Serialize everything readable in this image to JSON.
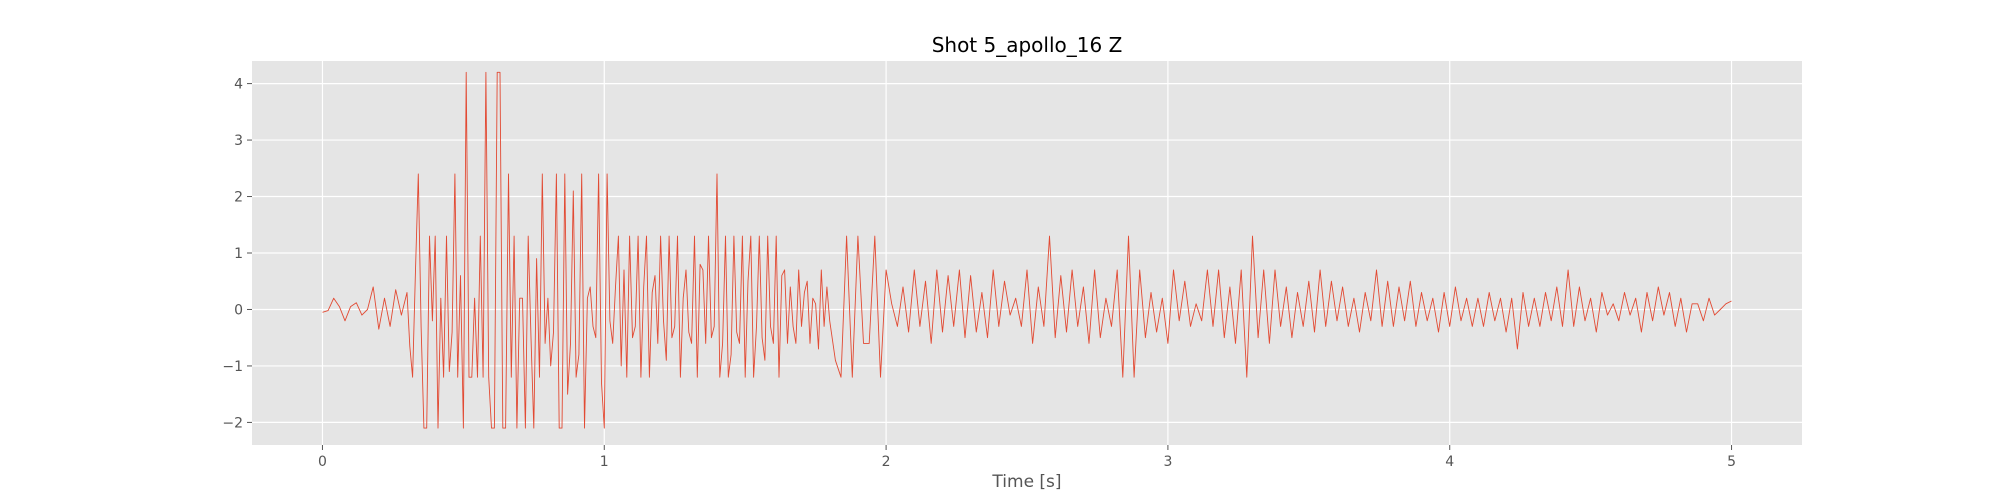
{
  "chart_data": {
    "type": "line",
    "title": "Shot 5_apollo_16 Z",
    "xlabel": "Time [s]",
    "ylabel": "",
    "xlim": [
      -0.25,
      5.25
    ],
    "ylim": [
      -2.4,
      4.4
    ],
    "xticks": [
      0,
      1,
      2,
      3,
      4,
      5
    ],
    "xtick_labels": [
      "0",
      "1",
      "2",
      "3",
      "4",
      "5"
    ],
    "yticks": [
      -2,
      -1,
      0,
      1,
      2,
      3,
      4
    ],
    "ytick_labels": [
      "−2",
      "−1",
      "0",
      "1",
      "2",
      "3",
      "4"
    ],
    "grid": true,
    "background": "#e5e5e5",
    "line_color": "#e24a33",
    "series": [
      {
        "x": [
          0.0,
          0.02,
          0.04,
          0.06,
          0.08,
          0.1,
          0.12,
          0.14,
          0.16,
          0.18,
          0.2,
          0.22,
          0.24,
          0.26,
          0.28,
          0.3,
          0.31,
          0.32,
          0.33,
          0.34,
          0.35,
          0.36,
          0.37,
          0.38,
          0.39,
          0.4,
          0.41,
          0.42,
          0.43,
          0.44,
          0.45,
          0.46,
          0.47,
          0.48,
          0.49,
          0.5,
          0.51,
          0.52,
          0.53,
          0.54,
          0.55,
          0.56,
          0.57,
          0.58,
          0.59,
          0.6,
          0.61,
          0.62,
          0.63,
          0.64,
          0.65,
          0.66,
          0.67,
          0.68,
          0.69,
          0.7,
          0.71,
          0.72,
          0.73,
          0.74,
          0.75,
          0.76,
          0.77,
          0.78,
          0.79,
          0.8,
          0.81,
          0.82,
          0.83,
          0.84,
          0.85,
          0.86,
          0.87,
          0.88,
          0.89,
          0.9,
          0.91,
          0.92,
          0.93,
          0.94,
          0.95,
          0.96,
          0.97,
          0.98,
          0.99,
          1.0,
          1.01,
          1.02,
          1.03,
          1.04,
          1.05,
          1.06,
          1.07,
          1.08,
          1.09,
          1.1,
          1.11,
          1.12,
          1.13,
          1.14,
          1.15,
          1.16,
          1.17,
          1.18,
          1.19,
          1.2,
          1.21,
          1.22,
          1.23,
          1.24,
          1.25,
          1.26,
          1.27,
          1.28,
          1.29,
          1.3,
          1.31,
          1.32,
          1.33,
          1.34,
          1.35,
          1.36,
          1.37,
          1.38,
          1.39,
          1.4,
          1.41,
          1.42,
          1.43,
          1.44,
          1.45,
          1.46,
          1.47,
          1.48,
          1.49,
          1.5,
          1.51,
          1.52,
          1.53,
          1.54,
          1.55,
          1.56,
          1.57,
          1.58,
          1.59,
          1.6,
          1.61,
          1.62,
          1.63,
          1.64,
          1.65,
          1.66,
          1.67,
          1.68,
          1.69,
          1.7,
          1.71,
          1.72,
          1.73,
          1.74,
          1.75,
          1.76,
          1.77,
          1.78,
          1.79,
          1.8,
          1.82,
          1.84,
          1.86,
          1.88,
          1.9,
          1.92,
          1.94,
          1.96,
          1.98,
          2.0,
          2.02,
          2.04,
          2.06,
          2.08,
          2.1,
          2.12,
          2.14,
          2.16,
          2.18,
          2.2,
          2.22,
          2.24,
          2.26,
          2.28,
          2.3,
          2.32,
          2.34,
          2.36,
          2.38,
          2.4,
          2.42,
          2.44,
          2.46,
          2.48,
          2.5,
          2.52,
          2.54,
          2.56,
          2.58,
          2.6,
          2.62,
          2.64,
          2.66,
          2.68,
          2.7,
          2.72,
          2.74,
          2.76,
          2.78,
          2.8,
          2.82,
          2.84,
          2.86,
          2.88,
          2.9,
          2.92,
          2.94,
          2.96,
          2.98,
          3.0,
          3.02,
          3.04,
          3.06,
          3.08,
          3.1,
          3.12,
          3.14,
          3.16,
          3.18,
          3.2,
          3.22,
          3.24,
          3.26,
          3.28,
          3.3,
          3.32,
          3.34,
          3.36,
          3.38,
          3.4,
          3.42,
          3.44,
          3.46,
          3.48,
          3.5,
          3.52,
          3.54,
          3.56,
          3.58,
          3.6,
          3.62,
          3.64,
          3.66,
          3.68,
          3.7,
          3.72,
          3.74,
          3.76,
          3.78,
          3.8,
          3.82,
          3.84,
          3.86,
          3.88,
          3.9,
          3.92,
          3.94,
          3.96,
          3.98,
          4.0,
          4.02,
          4.04,
          4.06,
          4.08,
          4.1,
          4.12,
          4.14,
          4.16,
          4.18,
          4.2,
          4.22,
          4.24,
          4.26,
          4.28,
          4.3,
          4.32,
          4.34,
          4.36,
          4.38,
          4.4,
          4.42,
          4.44,
          4.46,
          4.48,
          4.5,
          4.52,
          4.54,
          4.56,
          4.58,
          4.6,
          4.62,
          4.64,
          4.66,
          4.68,
          4.7,
          4.72,
          4.74,
          4.76,
          4.78,
          4.8,
          4.82,
          4.84,
          4.86,
          4.88,
          4.9,
          4.92,
          4.94,
          4.96,
          4.98,
          5.0
        ],
        "y": [
          -0.05,
          -0.02,
          0.2,
          0.05,
          -0.2,
          0.05,
          0.12,
          -0.1,
          0.0,
          0.4,
          -0.35,
          0.2,
          -0.3,
          0.35,
          -0.1,
          0.3,
          -0.65,
          -1.2,
          0.7,
          2.4,
          -0.3,
          -2.1,
          -2.1,
          1.3,
          -0.2,
          1.3,
          -2.1,
          0.2,
          -1.2,
          1.3,
          -1.1,
          -0.4,
          2.4,
          -1.2,
          0.6,
          -2.1,
          4.2,
          -1.2,
          -1.2,
          0.2,
          -1.2,
          1.3,
          -1.2,
          4.2,
          -1.2,
          -2.1,
          -2.1,
          4.2,
          4.2,
          -2.1,
          -2.1,
          2.4,
          -1.2,
          1.3,
          -2.1,
          0.2,
          0.2,
          -2.1,
          1.3,
          -0.5,
          -2.1,
          0.9,
          -1.2,
          2.4,
          -0.6,
          0.2,
          -1.0,
          -0.4,
          2.4,
          -2.1,
          -2.1,
          2.4,
          -1.5,
          -0.6,
          2.1,
          -1.2,
          -0.8,
          2.4,
          -2.1,
          0.2,
          0.4,
          -0.3,
          -0.5,
          2.4,
          -1.3,
          -2.1,
          2.4,
          -0.2,
          -0.6,
          0.4,
          1.3,
          -1.0,
          0.7,
          -1.2,
          1.3,
          -0.5,
          -0.3,
          1.3,
          -1.2,
          0.4,
          1.3,
          -1.2,
          0.3,
          0.6,
          -0.6,
          1.3,
          -0.2,
          -0.9,
          1.3,
          -0.5,
          -0.3,
          1.3,
          -1.2,
          0.2,
          0.7,
          -0.4,
          -0.6,
          1.3,
          -1.2,
          0.8,
          0.7,
          -0.6,
          1.3,
          -0.5,
          -0.3,
          2.4,
          -1.2,
          -0.6,
          1.3,
          -1.2,
          -0.8,
          1.3,
          -0.4,
          -0.6,
          1.3,
          -1.2,
          0.5,
          1.3,
          -1.2,
          -0.3,
          1.3,
          -0.5,
          -0.9,
          1.3,
          -0.3,
          -0.6,
          1.3,
          -1.2,
          0.6,
          0.7,
          -0.6,
          0.4,
          -0.3,
          -0.6,
          0.7,
          -0.3,
          0.3,
          0.5,
          -0.6,
          0.2,
          0.1,
          -0.7,
          0.7,
          -0.3,
          0.4,
          -0.2,
          -0.9,
          -1.2,
          1.3,
          -1.2,
          1.3,
          -0.6,
          -0.6,
          1.3,
          -1.2,
          0.7,
          0.1,
          -0.3,
          0.4,
          -0.4,
          0.7,
          -0.3,
          0.5,
          -0.6,
          0.7,
          -0.4,
          0.6,
          -0.3,
          0.7,
          -0.5,
          0.6,
          -0.4,
          0.3,
          -0.5,
          0.7,
          -0.3,
          0.5,
          -0.1,
          0.2,
          -0.3,
          0.7,
          -0.6,
          0.4,
          -0.3,
          1.3,
          -0.5,
          0.6,
          -0.4,
          0.7,
          -0.3,
          0.4,
          -0.6,
          0.7,
          -0.5,
          0.2,
          -0.3,
          0.7,
          -1.2,
          1.3,
          -1.2,
          0.7,
          -0.5,
          0.3,
          -0.4,
          0.2,
          -0.6,
          0.7,
          -0.2,
          0.5,
          -0.3,
          0.1,
          -0.2,
          0.7,
          -0.3,
          0.7,
          -0.5,
          0.4,
          -0.6,
          0.7,
          -1.2,
          1.3,
          -0.5,
          0.7,
          -0.6,
          0.7,
          -0.3,
          0.4,
          -0.5,
          0.3,
          -0.3,
          0.5,
          -0.4,
          0.7,
          -0.3,
          0.5,
          -0.2,
          0.4,
          -0.3,
          0.2,
          -0.4,
          0.3,
          -0.2,
          0.7,
          -0.3,
          0.5,
          -0.3,
          0.4,
          -0.2,
          0.5,
          -0.3,
          0.3,
          -0.2,
          0.2,
          -0.4,
          0.3,
          -0.3,
          0.4,
          -0.2,
          0.2,
          -0.3,
          0.2,
          -0.3,
          0.3,
          -0.2,
          0.2,
          -0.4,
          0.2,
          -0.7,
          0.3,
          -0.3,
          0.2,
          -0.3,
          0.3,
          -0.2,
          0.4,
          -0.3,
          0.7,
          -0.3,
          0.4,
          -0.2,
          0.2,
          -0.4,
          0.3,
          -0.1,
          0.1,
          -0.2,
          0.3,
          -0.1,
          0.2,
          -0.4,
          0.3,
          -0.2,
          0.4,
          -0.1,
          0.3,
          -0.3,
          0.2,
          -0.4,
          0.1,
          0.1,
          -0.2,
          0.2,
          -0.1,
          0.0,
          0.1,
          0.15
        ]
      }
    ]
  }
}
